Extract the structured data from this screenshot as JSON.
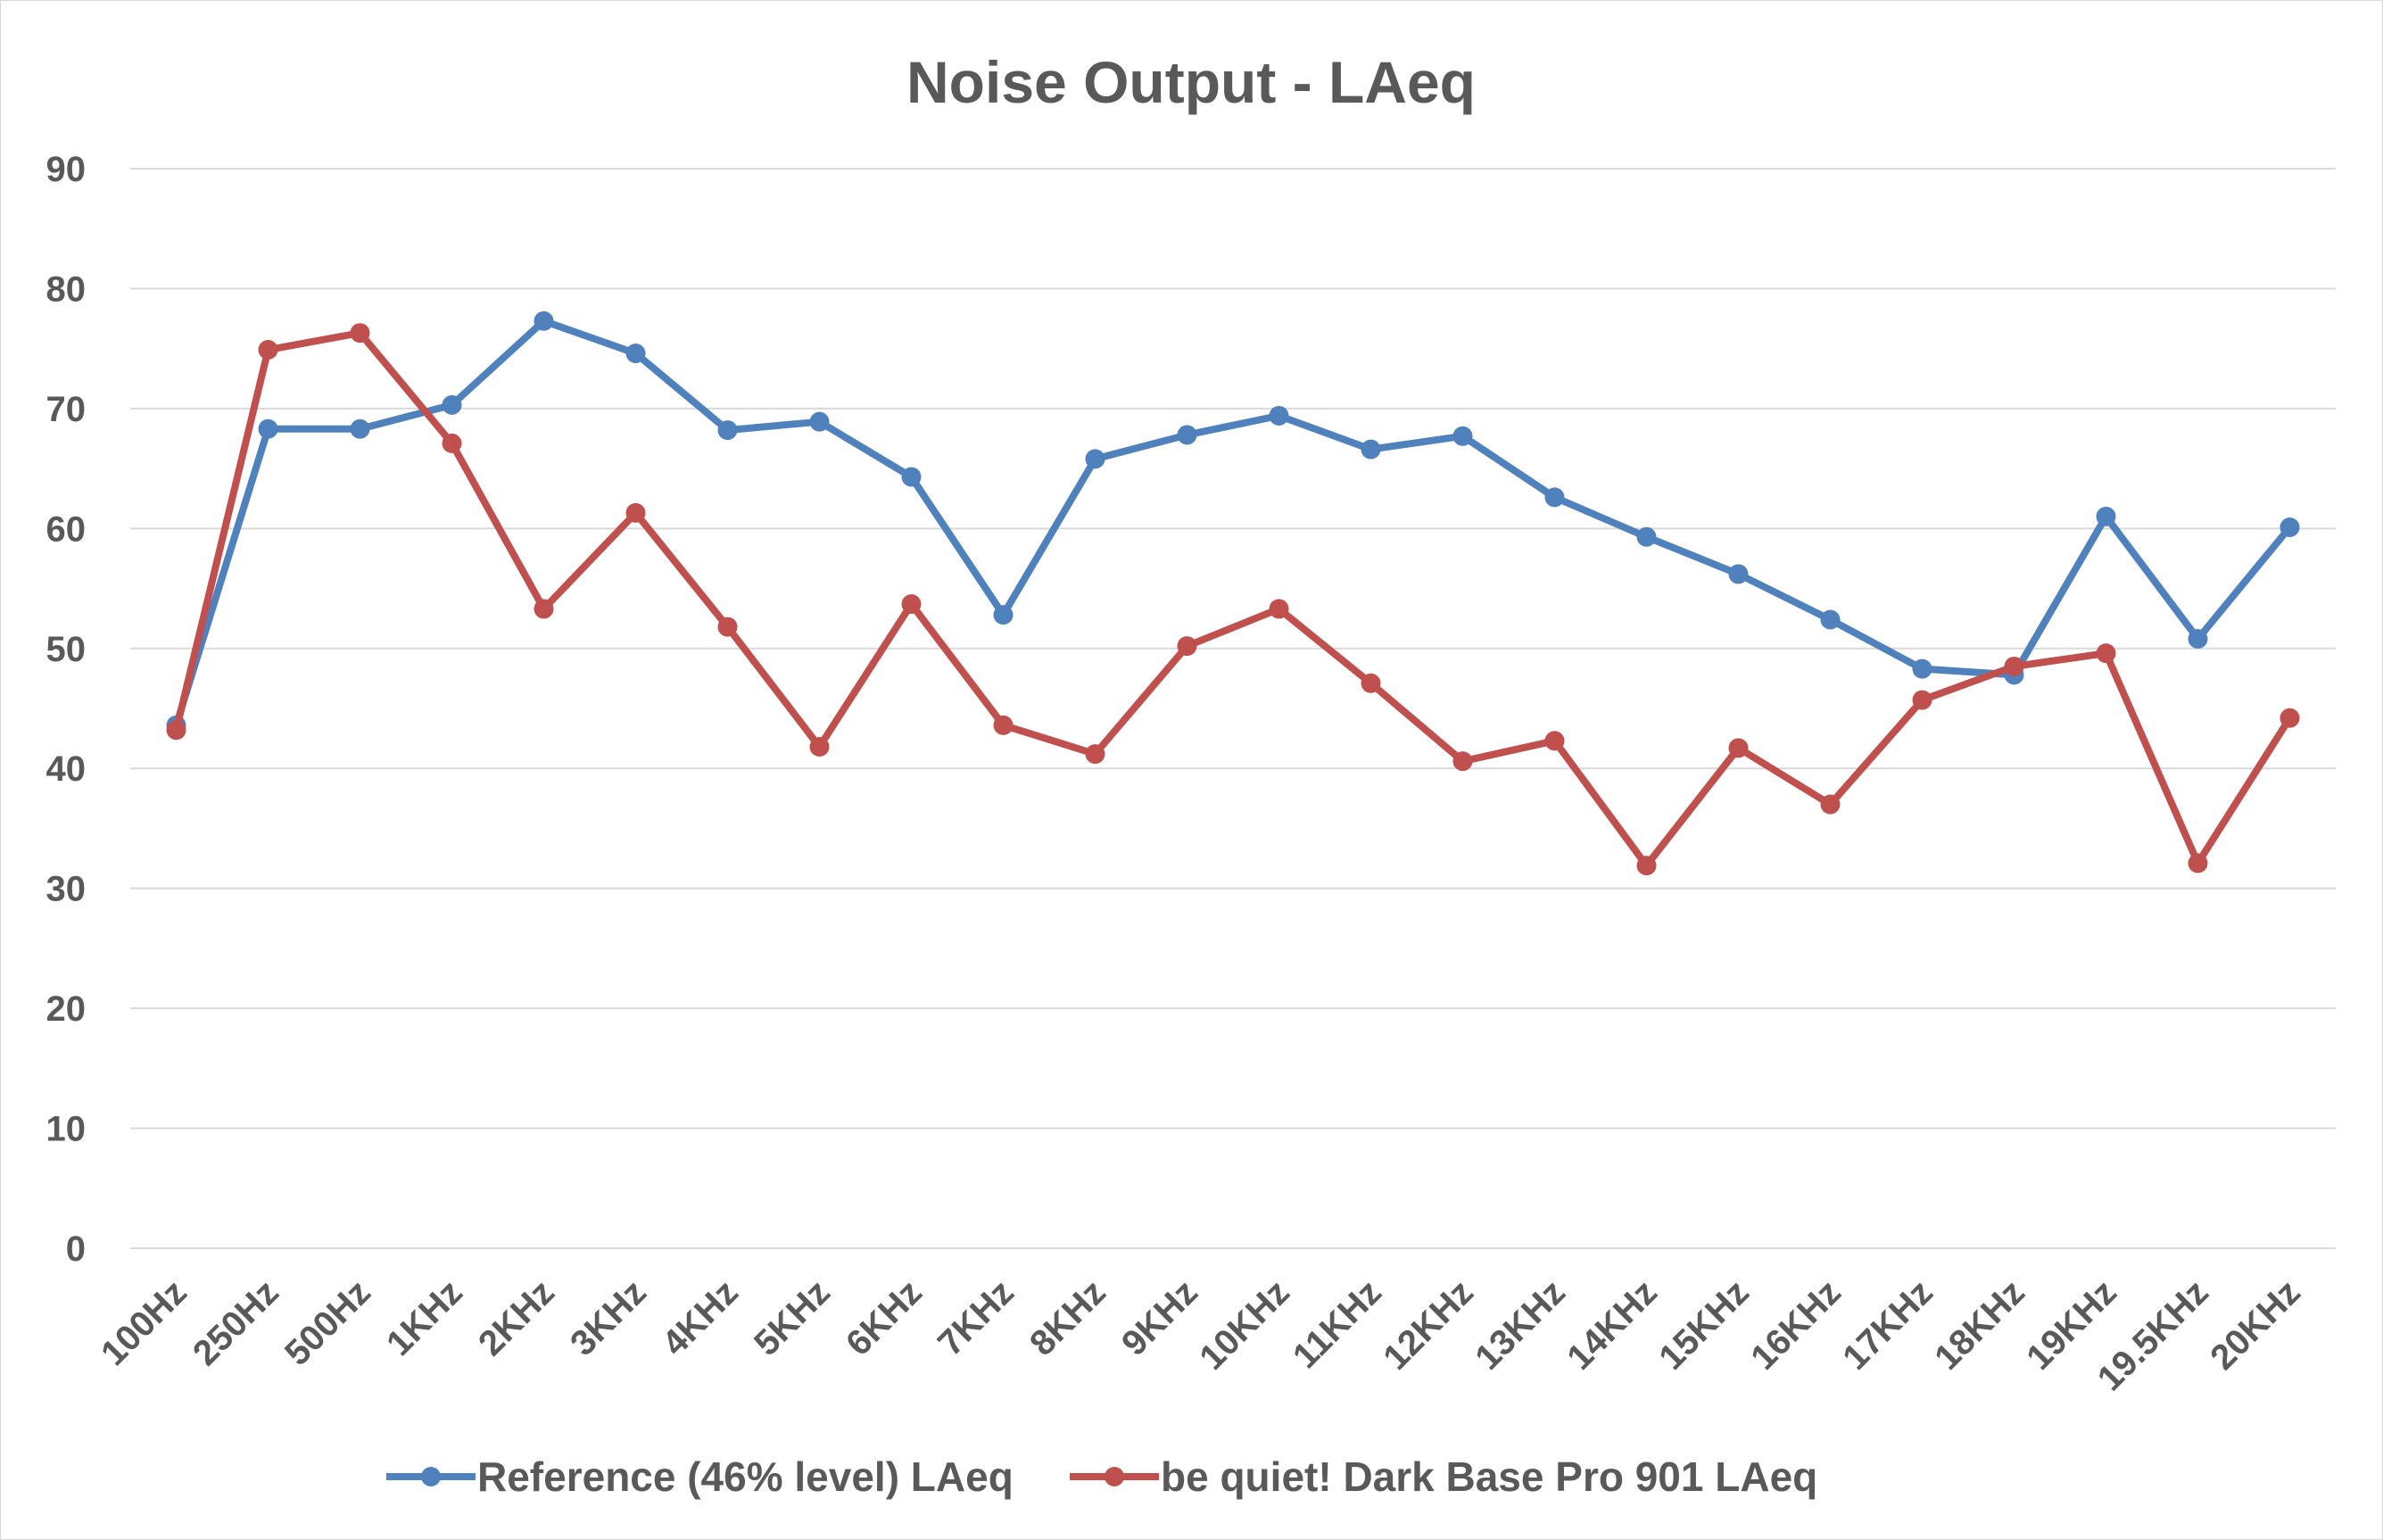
{
  "chart_data": {
    "type": "line",
    "title": "Noise Output - LAeq",
    "xlabel": "",
    "ylabel": "",
    "ylim": [
      0,
      90
    ],
    "yticks": [
      0,
      10,
      20,
      30,
      40,
      50,
      60,
      70,
      80,
      90
    ],
    "grid": true,
    "legend_position": "bottom",
    "categories": [
      "100Hz",
      "250Hz",
      "500Hz",
      "1KHz",
      "2KHz",
      "3KHz",
      "4KHz",
      "5KHz",
      "6KHz",
      "7KHz",
      "8KHz",
      "9KHz",
      "10KHz",
      "11KHz",
      "12KHz",
      "13KHz",
      "14KHz",
      "15KHz",
      "16KHz",
      "17KHz",
      "18KHz",
      "19KHz",
      "19.5KHz",
      "20KHz"
    ],
    "series": [
      {
        "name": "Reference (46% level) LAeq",
        "color": "#4f81bd",
        "values": [
          43.6,
          68.3,
          68.3,
          70.3,
          77.3,
          74.6,
          68.2,
          68.9,
          64.3,
          52.8,
          65.8,
          67.8,
          69.4,
          66.6,
          67.7,
          62.6,
          59.3,
          56.2,
          52.4,
          48.3,
          47.8,
          61.0,
          50.8,
          60.1
        ]
      },
      {
        "name": "be quiet! Dark Base Pro 901 LAeq",
        "color": "#c0504d",
        "values": [
          43.2,
          74.9,
          76.3,
          67.1,
          53.3,
          61.3,
          51.8,
          41.8,
          53.7,
          43.6,
          41.2,
          50.2,
          53.3,
          47.1,
          40.6,
          42.3,
          31.9,
          41.7,
          37.0,
          45.7,
          48.5,
          49.6,
          32.1,
          44.2
        ]
      }
    ]
  }
}
